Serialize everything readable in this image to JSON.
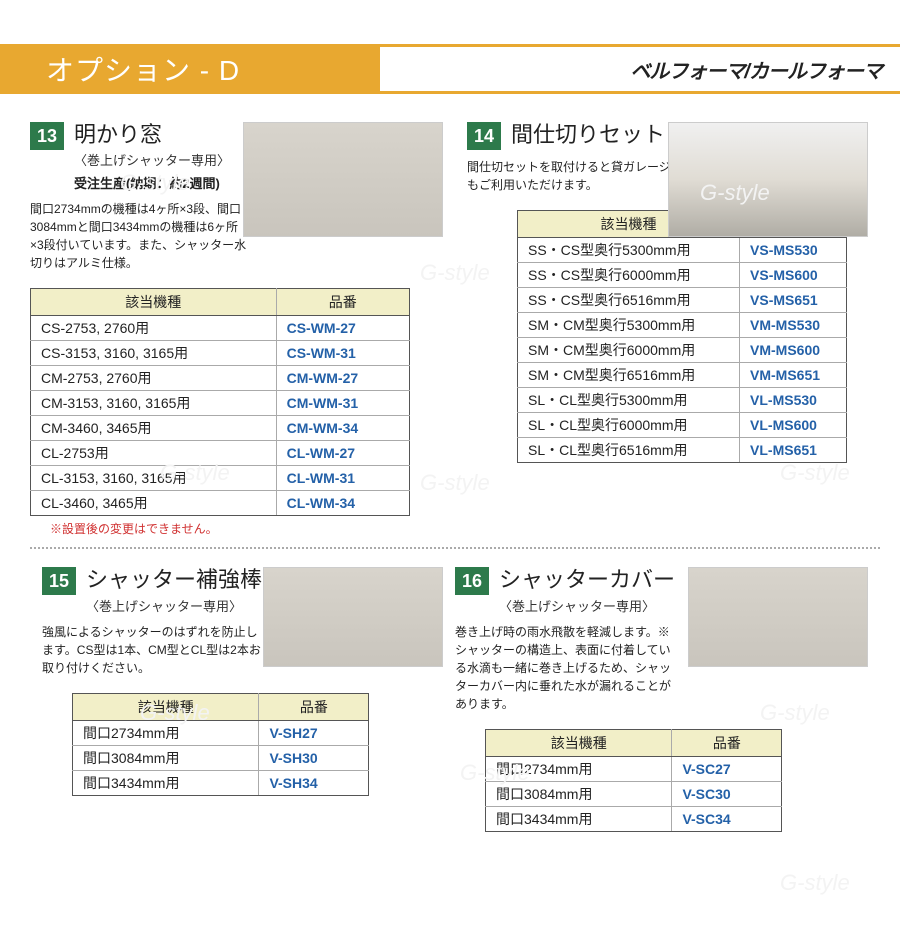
{
  "header": {
    "left": "オプション - D",
    "right": "ベルフォーマ/カールフォーマ"
  },
  "sections": [
    {
      "num": "13",
      "title": "明かり窓",
      "sub": "〈巻上げシャッター専用〉",
      "note": "受注生産(納期：約2週間)",
      "desc": "間口2734mmの機種は4ヶ所×3段、間口3084mmと間口3434mmの機種は6ヶ所×3段付いています。また、シャッター水切りはアルミ仕様。",
      "tableClass": "",
      "imgClass": "",
      "headers": [
        "該当機種",
        "品番"
      ],
      "rows": [
        [
          "CS-2753, 2760用",
          "CS-WM-27"
        ],
        [
          "CS-3153, 3160, 3165用",
          "CS-WM-31"
        ],
        [
          "CM-2753, 2760用",
          "CM-WM-27"
        ],
        [
          "CM-3153, 3160, 3165用",
          "CM-WM-31"
        ],
        [
          "CM-3460, 3465用",
          "CM-WM-34"
        ],
        [
          "CL-2753用",
          "CL-WM-27"
        ],
        [
          "CL-3153, 3160, 3165用",
          "CL-WM-31"
        ],
        [
          "CL-3460, 3465用",
          "CL-WM-34"
        ]
      ],
      "footnote": "※設置後の変更はできません。"
    },
    {
      "num": "14",
      "title": "間仕切りセット",
      "sub": "",
      "note": "",
      "desc": "間仕切セットを取付けると貸ガレージにもご利用いただけます。",
      "tableClass": "right",
      "imgClass": "garage",
      "headers": [
        "該当機種",
        "品番"
      ],
      "rows": [
        [
          "SS・CS型奥行5300mm用",
          "VS-MS530"
        ],
        [
          "SS・CS型奥行6000mm用",
          "VS-MS600"
        ],
        [
          "SS・CS型奥行6516mm用",
          "VS-MS651"
        ],
        [
          "SM・CM型奥行5300mm用",
          "VM-MS530"
        ],
        [
          "SM・CM型奥行6000mm用",
          "VM-MS600"
        ],
        [
          "SM・CM型奥行6516mm用",
          "VM-MS651"
        ],
        [
          "SL・CL型奥行5300mm用",
          "VL-MS530"
        ],
        [
          "SL・CL型奥行6000mm用",
          "VL-MS600"
        ],
        [
          "SL・CL型奥行6516mm用",
          "VL-MS651"
        ]
      ],
      "footnote": ""
    },
    {
      "num": "15",
      "title": "シャッター補強棒",
      "sub": "〈巻上げシャッター専用〉",
      "note": "",
      "desc": "強風によるシャッターのはずれを防止します。CS型は1本、CM型とCL型は2本お取り付けください。",
      "tableClass": "narrow",
      "imgClass": "small",
      "headers": [
        "該当機種",
        "品番"
      ],
      "rows": [
        [
          "間口2734mm用",
          "V-SH27"
        ],
        [
          "間口3084mm用",
          "V-SH30"
        ],
        [
          "間口3434mm用",
          "V-SH34"
        ]
      ],
      "footnote": ""
    },
    {
      "num": "16",
      "title": "シャッターカバー",
      "sub": "〈巻上げシャッター専用〉",
      "note": "",
      "desc": "巻き上げ時の雨水飛散を軽減します。※シャッターの構造上、表面に付着している水滴も一緒に巻き上げるため、シャッターカバー内に垂れた水が漏れることがあります。",
      "tableClass": "narrow",
      "imgClass": "small",
      "headers": [
        "該当機種",
        "品番"
      ],
      "rows": [
        [
          "間口2734mm用",
          "V-SC27"
        ],
        [
          "間口3084mm用",
          "V-SC30"
        ],
        [
          "間口3434mm用",
          "V-SC34"
        ]
      ],
      "footnote": ""
    }
  ],
  "watermark": "G-style",
  "colors": {
    "headerBg": "#e8a830",
    "numBg": "#2d7a4b",
    "thBg": "#f2efc8",
    "codeColor": "#2461a8",
    "footnoteColor": "#d03030"
  }
}
